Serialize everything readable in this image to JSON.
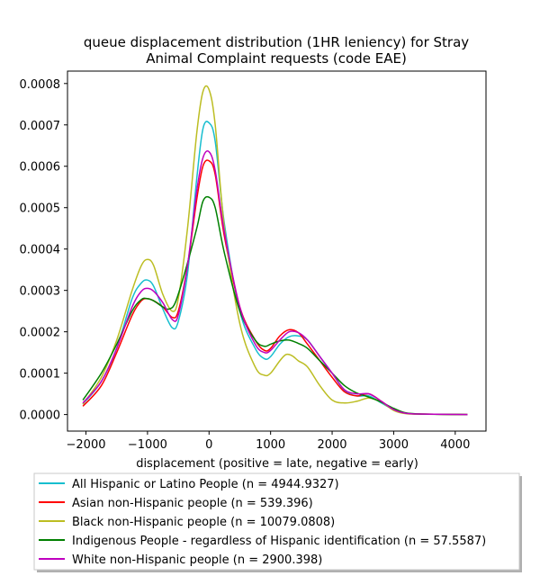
{
  "chart_data": {
    "type": "line",
    "title": "queue displacement distribution (1HR leniency) for Stray\nAnimal Complaint  requests (code EAE)",
    "xlabel": "displacement (positive = late, negative = early)",
    "ylabel": "",
    "xlim": [
      -2300,
      4500
    ],
    "ylim": [
      -4e-05,
      0.00083
    ],
    "x_ticks": [
      -2000,
      -1000,
      0,
      1000,
      2000,
      3000,
      4000
    ],
    "x_tick_labels": [
      "−2000",
      "−1000",
      "0",
      "1000",
      "2000",
      "3000",
      "4000"
    ],
    "y_ticks": [
      0,
      0.0001,
      0.0002,
      0.0003,
      0.0004,
      0.0005,
      0.0006,
      0.0007,
      0.0008
    ],
    "y_tick_labels": [
      "0.0000",
      "0.0001",
      "0.0002",
      "0.0003",
      "0.0004",
      "0.0005",
      "0.0006",
      "0.0007",
      "0.0008"
    ],
    "grid": false,
    "legend_position": "below",
    "series": [
      {
        "name": "All Hispanic or Latino People (n = 4944.9327)",
        "color": "#17becf",
        "points": [
          [
            -2050,
            2.5e-05
          ],
          [
            -1750,
            8e-05
          ],
          [
            -1500,
            0.00016
          ],
          [
            -1250,
            0.00028
          ],
          [
            -1100,
            0.000318
          ],
          [
            -1000,
            0.000325
          ],
          [
            -900,
            0.00031
          ],
          [
            -750,
            0.000255
          ],
          [
            -600,
            0.00021
          ],
          [
            -500,
            0.000225
          ],
          [
            -350,
            0.00034
          ],
          [
            -200,
            0.00057
          ],
          [
            -100,
            0.00069
          ],
          [
            0,
            0.000705
          ],
          [
            100,
            0.00066
          ],
          [
            250,
            0.00046
          ],
          [
            500,
            0.00025
          ],
          [
            750,
            0.00016
          ],
          [
            900,
            0.000135
          ],
          [
            1000,
            0.00014
          ],
          [
            1150,
            0.00017
          ],
          [
            1300,
            0.000188
          ],
          [
            1450,
            0.00019
          ],
          [
            1600,
            0.00018
          ],
          [
            1800,
            0.00014
          ],
          [
            2000,
            0.0001
          ],
          [
            2200,
            5.8e-05
          ],
          [
            2400,
            4.5e-05
          ],
          [
            2600,
            4.5e-05
          ],
          [
            2800,
            2.8e-05
          ],
          [
            3000,
            1.2e-05
          ],
          [
            3200,
            3e-06
          ],
          [
            3500,
            1e-06
          ],
          [
            4200,
            0
          ]
        ]
      },
      {
        "name": "Asian non-Hispanic people (n = 539.396)",
        "color": "#ff0000",
        "points": [
          [
            -2050,
            2e-05
          ],
          [
            -1750,
            7e-05
          ],
          [
            -1500,
            0.00015
          ],
          [
            -1250,
            0.00024
          ],
          [
            -1100,
            0.000275
          ],
          [
            -1000,
            0.00028
          ],
          [
            -900,
            0.000275
          ],
          [
            -750,
            0.00026
          ],
          [
            -600,
            0.000235
          ],
          [
            -500,
            0.00025
          ],
          [
            -350,
            0.00036
          ],
          [
            -200,
            0.00052
          ],
          [
            -100,
            0.0006
          ],
          [
            0,
            0.000613
          ],
          [
            100,
            0.00058
          ],
          [
            250,
            0.00043
          ],
          [
            500,
            0.00026
          ],
          [
            750,
            0.00018
          ],
          [
            900,
            0.000155
          ],
          [
            1000,
            0.00016
          ],
          [
            1150,
            0.00019
          ],
          [
            1300,
            0.000205
          ],
          [
            1450,
            0.000198
          ],
          [
            1600,
            0.00017
          ],
          [
            1800,
            0.00013
          ],
          [
            2000,
            9e-05
          ],
          [
            2200,
            5.5e-05
          ],
          [
            2400,
            4.5e-05
          ],
          [
            2600,
            5e-05
          ],
          [
            2800,
            3.2e-05
          ],
          [
            3000,
            1.2e-05
          ],
          [
            3200,
            3e-06
          ],
          [
            3500,
            1e-06
          ],
          [
            4200,
            0
          ]
        ]
      },
      {
        "name": "Black non-Hispanic people (n = 10079.0808)",
        "color": "#bcbd22",
        "points": [
          [
            -2050,
            2.5e-05
          ],
          [
            -1750,
            9e-05
          ],
          [
            -1500,
            0.00018
          ],
          [
            -1250,
            0.0003
          ],
          [
            -1100,
            0.00036
          ],
          [
            -1000,
            0.000375
          ],
          [
            -900,
            0.00036
          ],
          [
            -750,
            0.00029
          ],
          [
            -600,
            0.00025
          ],
          [
            -500,
            0.00028
          ],
          [
            -350,
            0.00045
          ],
          [
            -200,
            0.00068
          ],
          [
            -100,
            0.00078
          ],
          [
            0,
            0.000785
          ],
          [
            100,
            0.0007
          ],
          [
            250,
            0.00045
          ],
          [
            500,
            0.00022
          ],
          [
            750,
            0.000115
          ],
          [
            900,
            9.5e-05
          ],
          [
            1000,
            0.0001
          ],
          [
            1150,
            0.00013
          ],
          [
            1250,
            0.000145
          ],
          [
            1350,
            0.000142
          ],
          [
            1450,
            0.00013
          ],
          [
            1600,
            0.000115
          ],
          [
            1800,
            7e-05
          ],
          [
            2000,
            3.5e-05
          ],
          [
            2200,
            2.8e-05
          ],
          [
            2400,
            3.2e-05
          ],
          [
            2600,
            4e-05
          ],
          [
            2800,
            3e-05
          ],
          [
            3000,
            1e-05
          ],
          [
            3200,
            2e-06
          ],
          [
            3500,
            1e-06
          ],
          [
            4200,
            0
          ]
        ]
      },
      {
        "name": "Indigenous People - regardless of Hispanic identification (n = 57.5587)",
        "color": "#008000",
        "points": [
          [
            -2050,
            3.5e-05
          ],
          [
            -1750,
            0.0001
          ],
          [
            -1500,
            0.00017
          ],
          [
            -1250,
            0.00025
          ],
          [
            -1100,
            0.000278
          ],
          [
            -1000,
            0.00028
          ],
          [
            -900,
            0.000275
          ],
          [
            -750,
            0.00026
          ],
          [
            -650,
            0.000255
          ],
          [
            -550,
            0.00027
          ],
          [
            -400,
            0.00034
          ],
          [
            -200,
            0.00045
          ],
          [
            -100,
            0.000515
          ],
          [
            0,
            0.000525
          ],
          [
            100,
            0.0005
          ],
          [
            250,
            0.00039
          ],
          [
            500,
            0.00025
          ],
          [
            750,
            0.00018
          ],
          [
            900,
            0.000165
          ],
          [
            1000,
            0.00017
          ],
          [
            1150,
            0.000178
          ],
          [
            1300,
            0.00018
          ],
          [
            1450,
            0.000172
          ],
          [
            1600,
            0.00016
          ],
          [
            1800,
            0.00013
          ],
          [
            2000,
            0.0001
          ],
          [
            2200,
            7e-05
          ],
          [
            2400,
            5.2e-05
          ],
          [
            2600,
            4.2e-05
          ],
          [
            2800,
            3e-05
          ],
          [
            3000,
            1.5e-05
          ],
          [
            3200,
            4e-06
          ],
          [
            3500,
            1e-06
          ],
          [
            4200,
            0
          ]
        ]
      },
      {
        "name": "White non-Hispanic people (n = 2900.398)",
        "color": "#bf00bf",
        "points": [
          [
            -2050,
            2.8e-05
          ],
          [
            -1750,
            8e-05
          ],
          [
            -1500,
            0.00016
          ],
          [
            -1250,
            0.00026
          ],
          [
            -1100,
            0.000298
          ],
          [
            -1000,
            0.000305
          ],
          [
            -900,
            0.000298
          ],
          [
            -750,
            0.00027
          ],
          [
            -600,
            0.00023
          ],
          [
            -500,
            0.00024
          ],
          [
            -350,
            0.00036
          ],
          [
            -200,
            0.00054
          ],
          [
            -100,
            0.00062
          ],
          [
            0,
            0.000635
          ],
          [
            100,
            0.00059
          ],
          [
            250,
            0.00044
          ],
          [
            500,
            0.00026
          ],
          [
            750,
            0.00017
          ],
          [
            900,
            0.00015
          ],
          [
            1000,
            0.000155
          ],
          [
            1150,
            0.00018
          ],
          [
            1300,
            0.0002
          ],
          [
            1450,
            0.000198
          ],
          [
            1600,
            0.00018
          ],
          [
            1800,
            0.00014
          ],
          [
            2000,
            0.0001
          ],
          [
            2200,
            6e-05
          ],
          [
            2400,
            5e-05
          ],
          [
            2600,
            5e-05
          ],
          [
            2800,
            3.2e-05
          ],
          [
            3000,
            1.2e-05
          ],
          [
            3200,
            3e-06
          ],
          [
            3500,
            1e-06
          ],
          [
            4200,
            0
          ]
        ]
      }
    ]
  }
}
